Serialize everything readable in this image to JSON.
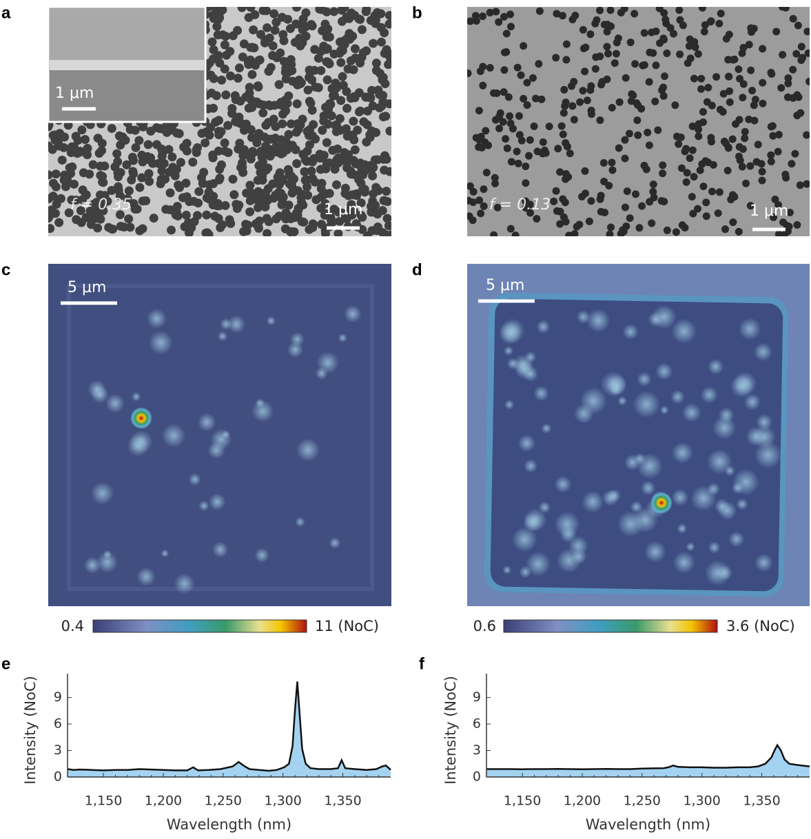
{
  "panels": {
    "a": {
      "label": "a",
      "inset_scale_bar": "1 μm",
      "fill_fraction": "f = 0.35",
      "scale_bar": "1 μm"
    },
    "b": {
      "label": "b",
      "fill_fraction": "f = 0.13",
      "scale_bar": "1 μm"
    },
    "c": {
      "label": "c",
      "scale_bar": "5 μm",
      "colorbar_min": "0.4",
      "colorbar_max": "11 (NoC)"
    },
    "d": {
      "label": "d",
      "scale_bar": "5 μm",
      "colorbar_min": "0.6",
      "colorbar_max": "3.6 (NoC)"
    },
    "e": {
      "label": "e"
    },
    "f": {
      "label": "f"
    }
  },
  "chart_data": [
    {
      "type": "area",
      "color": "#a3d3f1",
      "line_color": "#111111",
      "x_label": "Wavelength (nm)",
      "y_label": "Intensity (NoC)",
      "x": [
        1120,
        1125,
        1130,
        1140,
        1150,
        1160,
        1170,
        1180,
        1190,
        1200,
        1210,
        1220,
        1225,
        1229,
        1238,
        1248,
        1258,
        1263,
        1267,
        1272,
        1280,
        1288,
        1295,
        1301,
        1305,
        1308,
        1310,
        1312,
        1314,
        1316,
        1319,
        1323,
        1330,
        1340,
        1346,
        1349,
        1352,
        1360,
        1370,
        1378,
        1383,
        1386,
        1390
      ],
      "values": [
        0.9,
        0.8,
        0.85,
        0.8,
        0.75,
        0.8,
        0.8,
        0.9,
        0.85,
        0.8,
        0.75,
        0.75,
        1.1,
        0.75,
        0.8,
        0.9,
        1.2,
        1.7,
        1.3,
        0.9,
        0.8,
        0.7,
        0.8,
        1.1,
        1.5,
        3.5,
        7.5,
        10.8,
        7.0,
        3.2,
        1.5,
        1.0,
        0.9,
        0.9,
        1.0,
        1.9,
        1.0,
        0.9,
        0.8,
        0.9,
        1.2,
        1.3,
        0.8
      ],
      "xlim": [
        1120,
        1390
      ],
      "ylim": [
        0,
        11.7
      ],
      "xticks": [
        {
          "value": 1150,
          "label": "1,150"
        },
        {
          "value": 1200,
          "label": "1,200"
        },
        {
          "value": 1250,
          "label": "1,250"
        },
        {
          "value": 1300,
          "label": "1,300"
        },
        {
          "value": 1350,
          "label": "1,350"
        }
      ],
      "yticks": [
        0,
        3,
        6,
        9
      ]
    },
    {
      "type": "area",
      "color": "#a3d3f1",
      "line_color": "#111111",
      "x_label": "Wavelength (nm)",
      "y_label": "Intensity (NoC)",
      "x": [
        1120,
        1130,
        1140,
        1150,
        1160,
        1170,
        1180,
        1190,
        1200,
        1210,
        1220,
        1230,
        1240,
        1250,
        1260,
        1268,
        1272,
        1276,
        1280,
        1290,
        1300,
        1310,
        1320,
        1330,
        1340,
        1347,
        1353,
        1358,
        1361,
        1363,
        1366,
        1369,
        1373,
        1378,
        1383,
        1390
      ],
      "values": [
        0.9,
        0.9,
        0.9,
        0.88,
        0.9,
        0.9,
        0.92,
        0.9,
        0.88,
        0.9,
        0.92,
        0.9,
        0.9,
        0.95,
        0.98,
        1.0,
        1.1,
        1.3,
        1.15,
        1.1,
        1.1,
        1.05,
        1.05,
        1.1,
        1.1,
        1.2,
        1.5,
        2.2,
        3.1,
        3.6,
        3.0,
        2.0,
        1.5,
        1.4,
        1.3,
        1.2
      ],
      "xlim": [
        1120,
        1390
      ],
      "ylim": [
        0,
        11.7
      ],
      "xticks": [
        {
          "value": 1150,
          "label": "1,150"
        },
        {
          "value": 1200,
          "label": "1,200"
        },
        {
          "value": 1250,
          "label": "1,250"
        },
        {
          "value": 1300,
          "label": "1,300"
        },
        {
          "value": 1350,
          "label": "1,350"
        }
      ],
      "yticks": [
        0,
        3,
        6,
        9
      ]
    }
  ]
}
